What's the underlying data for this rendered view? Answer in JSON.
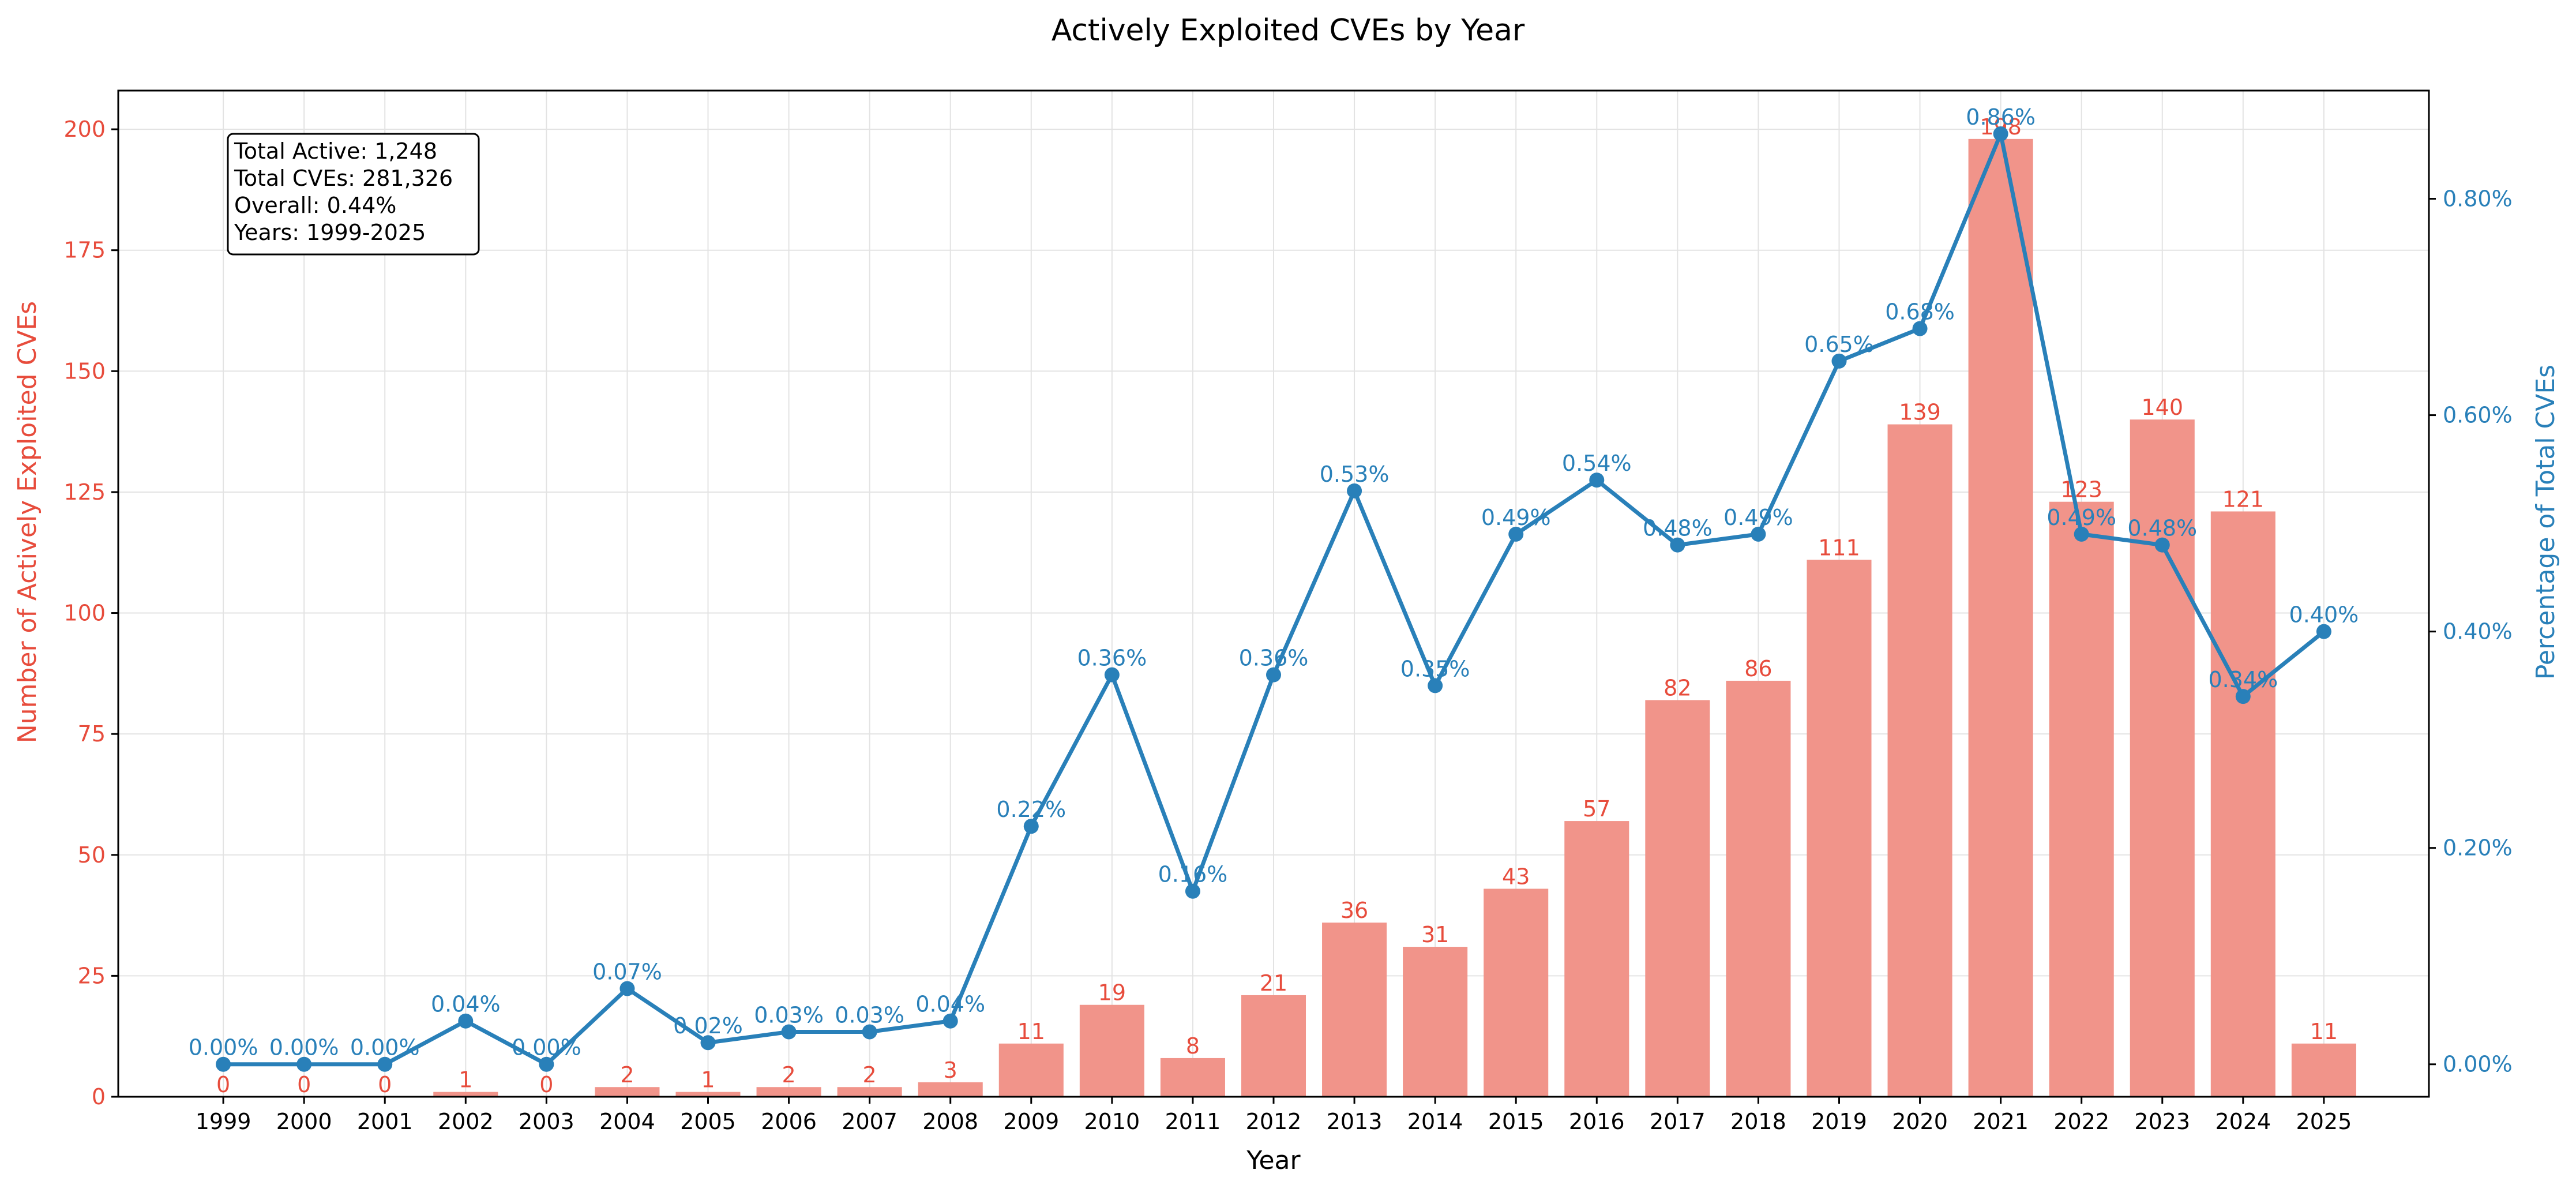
{
  "chart_data": {
    "type": "bar+line",
    "title": "Actively Exploited CVEs by Year",
    "xlabel": "Year",
    "ylabel_left": "Number of Actively Exploited CVEs",
    "ylabel_right": "Percentage of Total CVEs",
    "ylim_left": [
      0,
      208
    ],
    "ylim_right": [
      -0.03,
      0.9
    ],
    "yticks_left": [
      0,
      25,
      50,
      75,
      100,
      125,
      150,
      175,
      200
    ],
    "yticks_right": [
      0.0,
      0.2,
      0.4,
      0.6,
      0.8
    ],
    "yticks_right_labels": [
      "0.00%",
      "0.20%",
      "0.40%",
      "0.60%",
      "0.80%"
    ],
    "grid": true,
    "categories": [
      "1999",
      "2000",
      "2001",
      "2002",
      "2003",
      "2004",
      "2005",
      "2006",
      "2007",
      "2008",
      "2009",
      "2010",
      "2011",
      "2012",
      "2013",
      "2014",
      "2015",
      "2016",
      "2017",
      "2018",
      "2019",
      "2020",
      "2021",
      "2022",
      "2023",
      "2024",
      "2025"
    ],
    "series": [
      {
        "type": "bar",
        "axis": "left",
        "values": [
          0,
          0,
          0,
          1,
          0,
          2,
          1,
          2,
          2,
          3,
          11,
          19,
          8,
          21,
          36,
          31,
          43,
          57,
          82,
          86,
          111,
          139,
          198,
          123,
          140,
          121,
          11
        ],
        "labels": [
          "0",
          "0",
          "0",
          "1",
          "0",
          "2",
          "1",
          "2",
          "2",
          "3",
          "11",
          "19",
          "8",
          "21",
          "36",
          "31",
          "43",
          "57",
          "82",
          "86",
          "111",
          "139",
          "198",
          "123",
          "140",
          "121",
          "11"
        ]
      },
      {
        "type": "line",
        "axis": "right",
        "values": [
          0.0,
          0.0,
          0.0,
          0.04,
          0.0,
          0.07,
          0.02,
          0.03,
          0.03,
          0.04,
          0.22,
          0.36,
          0.16,
          0.36,
          0.53,
          0.35,
          0.49,
          0.54,
          0.48,
          0.49,
          0.65,
          0.68,
          0.86,
          0.49,
          0.48,
          0.34,
          0.4
        ],
        "labels": [
          "0.00%",
          "0.00%",
          "0.00%",
          "0.04%",
          "0.00%",
          "0.07%",
          "0.02%",
          "0.03%",
          "0.03%",
          "0.04%",
          "0.22%",
          "0.36%",
          "0.16%",
          "0.36%",
          "0.53%",
          "0.35%",
          "0.49%",
          "0.54%",
          "0.48%",
          "0.49%",
          "0.65%",
          "0.68%",
          "0.86%",
          "0.49%",
          "0.48%",
          "0.34%",
          "0.40%"
        ]
      }
    ],
    "colors": {
      "bar": "#f1948a",
      "bar_label": "#e74c3c",
      "line": "#2980b9",
      "left_axis": "#e74c3c",
      "right_axis": "#2980b9",
      "grid": "#e3e3e3"
    },
    "stats_box": [
      "Total Active: 1,248",
      "Total CVEs: 281,326",
      "Overall: 0.44%",
      "Years: 1999-2025"
    ],
    "stats_box_placement": "top-left"
  }
}
